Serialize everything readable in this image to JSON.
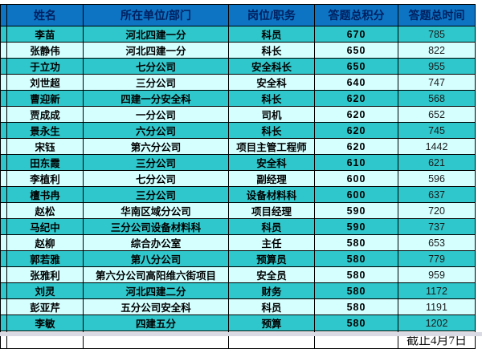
{
  "table": {
    "headers": [
      "姓名",
      "所在单位/部门",
      "岗位/职务",
      "答题总积分",
      "答题总时间"
    ],
    "rows": [
      [
        "李苗",
        "河北四建一分",
        "科员",
        "670",
        "785"
      ],
      [
        "张静伟",
        "河北四建一分",
        "科长",
        "650",
        "822"
      ],
      [
        "于立功",
        "七分公司",
        "安全科长",
        "650",
        "955"
      ],
      [
        "刘世超",
        "三分公司",
        "安全科",
        "640",
        "747"
      ],
      [
        "曹迎新",
        "四建一分安全科",
        "科长",
        "620",
        "568"
      ],
      [
        "贾成成",
        "一分公司",
        "司机",
        "620",
        "652"
      ],
      [
        "景永生",
        "六分公司",
        "科长",
        "620",
        "745"
      ],
      [
        "宋钰",
        "第六分公司",
        "项目主管工程师",
        "620",
        "1442"
      ],
      [
        "田东霞",
        "三分公司",
        "安全科",
        "610",
        "621"
      ],
      [
        "李植利",
        "七分公司",
        "副经理",
        "600",
        "596"
      ],
      [
        "檀书冉",
        "三分公司",
        "设备材料科",
        "600",
        "637"
      ],
      [
        "赵松",
        "华南区域分公司",
        "项目经理",
        "590",
        "720"
      ],
      [
        "马纪中",
        "三分公司设备材料科",
        "科员",
        "590",
        "737"
      ],
      [
        "赵柳",
        "综合办公室",
        "主任",
        "580",
        "653"
      ],
      [
        "郭若雅",
        "第八分公司",
        "预算员",
        "580",
        "779"
      ],
      [
        "张雅利",
        "第六分公司高阳维六街项目",
        "安全员",
        "580",
        "959"
      ],
      [
        "刘灵",
        "河北四建二分",
        "财务",
        "580",
        "1172"
      ],
      [
        "彭亚芹",
        "五分公司安全科",
        "科员",
        "580",
        "1191"
      ],
      [
        "李敏",
        "四建五分",
        "预算",
        "580",
        "1202"
      ]
    ],
    "footer_note": "截止4月7日"
  },
  "colors": {
    "header_bg": "#0d74c4",
    "header_text": "#002060",
    "row_teal": "#2fc7cb",
    "row_light": "#d5ffff",
    "cell_border": "#000000",
    "footer_border": "#c9c9c9",
    "bottom_strip": "#d9dae3"
  }
}
